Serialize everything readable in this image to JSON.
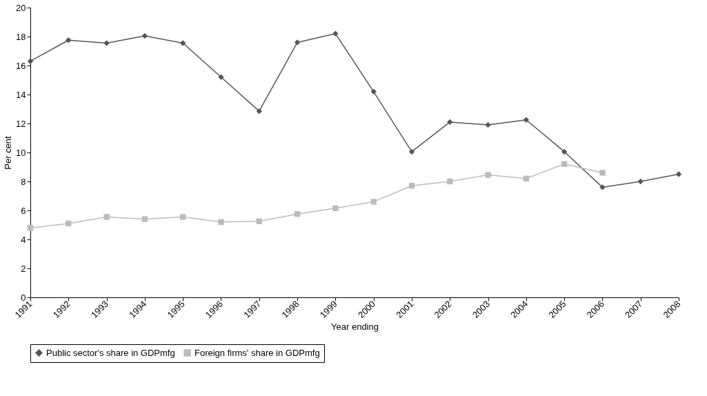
{
  "chart_data": {
    "type": "line",
    "xlabel": "Year ending",
    "ylabel": "Per cent",
    "categories": [
      "1991",
      "1992",
      "1993",
      "1994",
      "1995",
      "1996",
      "1997",
      "1998",
      "1999",
      "2000",
      "2001",
      "2002",
      "2003",
      "2004",
      "2005",
      "2006",
      "2007",
      "2008"
    ],
    "series": [
      {
        "name": "Public sector's share in GDPmfg",
        "color": "#555555",
        "marker": "diamond",
        "values": [
          16.3,
          17.75,
          17.55,
          18.05,
          17.55,
          15.2,
          12.85,
          17.6,
          18.2,
          14.2,
          10.05,
          12.1,
          11.9,
          12.25,
          10.05,
          7.6,
          8.0,
          8.5
        ]
      },
      {
        "name": "Foreign firms' share in GDPmfg",
        "color": "#bbbbbb",
        "marker": "square",
        "values": [
          4.8,
          5.1,
          5.55,
          5.4,
          5.55,
          5.2,
          5.25,
          5.75,
          6.15,
          6.6,
          7.7,
          8.0,
          8.45,
          8.2,
          9.2,
          8.6,
          null,
          null
        ]
      }
    ],
    "ylim": [
      0,
      20
    ],
    "yticks": [
      0,
      2,
      4,
      6,
      8,
      10,
      12,
      14,
      16,
      18,
      20
    ],
    "grid": false,
    "legend": "bottom",
    "line_style": "solid"
  }
}
